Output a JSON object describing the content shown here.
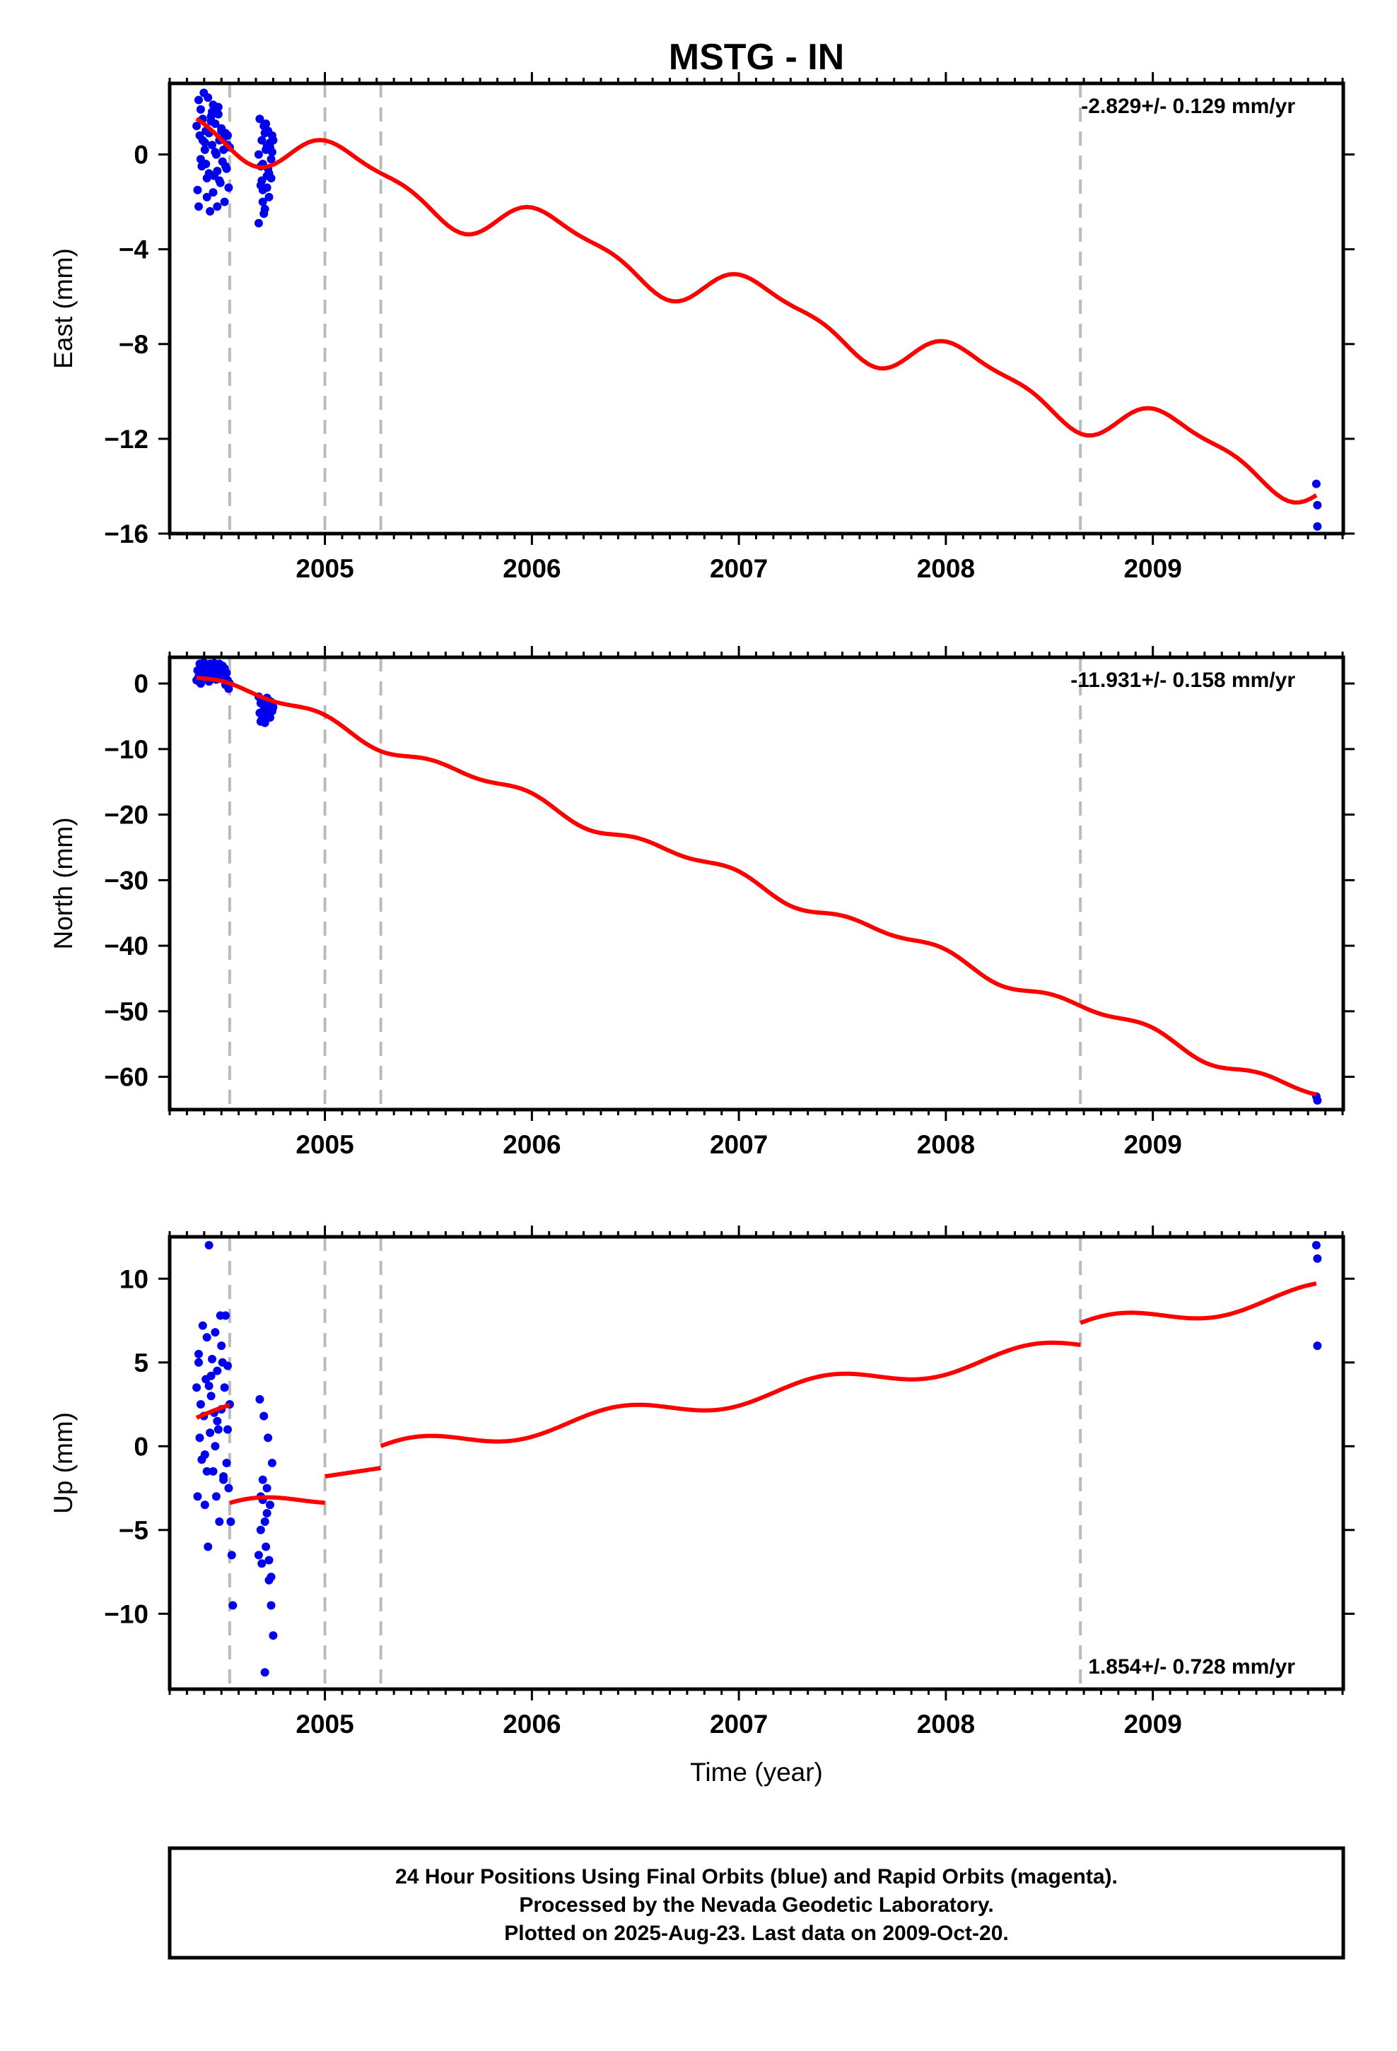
{
  "title": "MSTG - IN",
  "colors": {
    "final_orbits": "#0000ee",
    "model": "#ff0000",
    "event_lines": "#bbbbbb",
    "frame": "#000000"
  },
  "footer": {
    "line1": "24 Hour Positions Using Final Orbits (blue) and Rapid Orbits (magenta).",
    "line2": "Processed by the Nevada Geodetic Laboratory.",
    "line3": "Plotted on 2025-Aug-23. Last data on 2009-Oct-20."
  },
  "chart_data": [
    {
      "type": "scatter",
      "name": "east",
      "ylabel": "East (mm)",
      "xlabel": "",
      "xlim": [
        2004.25,
        2009.92
      ],
      "ylim": [
        -16,
        3
      ],
      "x_ticks": [
        2005,
        2006,
        2007,
        2008,
        2009
      ],
      "y_ticks": [
        0,
        -4,
        -8,
        -12,
        -16
      ],
      "rate_text": "-2.829+/- 0.129 mm/yr",
      "rate_position": "top-right",
      "event_lines": [
        2004.54,
        2005.0,
        2005.27,
        2008.65
      ],
      "model_segments": [
        {
          "start": 2004.38,
          "end": 2009.79,
          "rate": -2.829,
          "offset": -0.05,
          "ref_year": 2004.9,
          "annual_amp": 0.9,
          "annual_phase": 0.25,
          "semiannual_amp": 0.3,
          "semiannual_phase": 1.0
        }
      ],
      "points": {
        "x": [
          2004.38,
          2004.385,
          2004.39,
          2004.395,
          2004.4,
          2004.405,
          2004.41,
          2004.415,
          2004.42,
          2004.425,
          2004.43,
          2004.435,
          2004.44,
          2004.445,
          2004.45,
          2004.455,
          2004.46,
          2004.465,
          2004.47,
          2004.475,
          2004.48,
          2004.485,
          2004.49,
          2004.495,
          2004.5,
          2004.505,
          2004.51,
          2004.515,
          2004.52,
          2004.525,
          2004.53,
          2004.535,
          2004.54,
          2004.39,
          2004.42,
          2004.45,
          2004.48,
          2004.51,
          2004.53,
          2004.4,
          2004.46,
          2004.44,
          2004.5,
          2004.47,
          2004.43,
          2004.52,
          2004.41,
          2004.49,
          2004.455,
          2004.425,
          2004.485,
          2004.68,
          2004.685,
          2004.69,
          2004.695,
          2004.7,
          2004.705,
          2004.71,
          2004.715,
          2004.72,
          2004.725,
          2004.73,
          2004.735,
          2004.74,
          2004.745,
          2004.75,
          2004.69,
          2004.71,
          2004.73,
          2004.7,
          2004.72,
          2004.74,
          2004.68,
          2004.705,
          2004.725,
          2004.745,
          2004.695,
          2004.715,
          2004.735,
          2004.7,
          2004.72,
          2009.79,
          2009.795,
          2009.795
        ],
        "y": [
          1.2,
          -1.5,
          2.3,
          0.8,
          1.9,
          -0.5,
          1.5,
          2.6,
          0.2,
          1.0,
          -1.8,
          2.4,
          0.9,
          -2.4,
          1.6,
          0.4,
          2.1,
          -0.9,
          1.3,
          0.0,
          -2.2,
          1.7,
          0.6,
          -1.2,
          1.1,
          -0.3,
          0.7,
          -2.0,
          0.9,
          -0.6,
          0.4,
          -1.4,
          0.3,
          -2.2,
          0.5,
          1.4,
          -0.7,
          0.2,
          0.8,
          -0.2,
          -1.6,
          -0.8,
          1.0,
          0.1,
          -1.0,
          -0.5,
          0.6,
          -1.1,
          1.8,
          -0.4,
          2.0,
          -2.9,
          1.5,
          -0.5,
          0.6,
          -1.5,
          1.2,
          -2.3,
          0.2,
          -0.9,
          1.0,
          -1.8,
          0.3,
          -0.2,
          0.8,
          0.6,
          -1.3,
          0.9,
          -0.8,
          -2.0,
          0.4,
          -1.0,
          0.0,
          -2.5,
          -0.6,
          0.1,
          -1.1,
          1.3,
          0.5,
          -0.4,
          -1.4,
          -13.9,
          -14.8,
          -15.7
        ]
      }
    },
    {
      "type": "scatter",
      "name": "north",
      "ylabel": "North (mm)",
      "xlabel": "",
      "xlim": [
        2004.25,
        2009.92
      ],
      "ylim": [
        -65,
        4
      ],
      "x_ticks": [
        2005,
        2006,
        2007,
        2008,
        2009
      ],
      "y_ticks": [
        0,
        -10,
        -20,
        -30,
        -40,
        -50,
        -60
      ],
      "rate_text": "-11.931+/- 0.158 mm/yr",
      "rate_position": "top-right",
      "event_lines": [
        2004.54,
        2005.0,
        2005.27,
        2008.65
      ],
      "model_segments": [
        {
          "start": 2004.38,
          "end": 2009.79,
          "rate": -11.931,
          "offset": -4.6,
          "ref_year": 2004.9,
          "annual_amp": 0.8,
          "annual_phase": 2.0,
          "semiannual_amp": 0.6,
          "semiannual_phase": 0.3
        }
      ],
      "points": {
        "x": [
          2004.38,
          2004.385,
          2004.39,
          2004.395,
          2004.4,
          2004.405,
          2004.41,
          2004.415,
          2004.42,
          2004.425,
          2004.43,
          2004.435,
          2004.44,
          2004.445,
          2004.45,
          2004.455,
          2004.46,
          2004.465,
          2004.47,
          2004.475,
          2004.48,
          2004.485,
          2004.49,
          2004.495,
          2004.5,
          2004.505,
          2004.51,
          2004.515,
          2004.52,
          2004.525,
          2004.53,
          2004.535,
          2004.54,
          2004.68,
          2004.685,
          2004.69,
          2004.695,
          2004.7,
          2004.705,
          2004.71,
          2004.715,
          2004.72,
          2004.725,
          2004.73,
          2004.735,
          2004.74,
          2004.745,
          2004.75,
          2004.69,
          2004.71,
          2004.73,
          2004.7,
          2004.72,
          2004.74,
          2009.79,
          2009.795
        ],
        "y": [
          0.5,
          2.0,
          1.0,
          3.0,
          0.0,
          2.5,
          1.5,
          3.2,
          0.8,
          2.2,
          1.2,
          2.8,
          0.3,
          3.0,
          1.8,
          2.4,
          1.0,
          3.1,
          2.0,
          0.6,
          2.6,
          1.4,
          3.0,
          1.9,
          0.8,
          2.7,
          1.1,
          2.3,
          -0.2,
          1.6,
          0.5,
          -0.8,
          0.0,
          -2.0,
          -4.5,
          -3.0,
          -5.5,
          -2.5,
          -4.0,
          -6.0,
          -3.5,
          -2.2,
          -4.8,
          -3.2,
          -5.2,
          -2.8,
          -4.2,
          -3.6,
          -5.8,
          -3.8,
          -2.6,
          -4.4,
          -5.0,
          -3.0,
          -63.0,
          -63.6
        ]
      }
    },
    {
      "type": "scatter",
      "name": "up",
      "ylabel": "Up (mm)",
      "xlabel": "Time (year)",
      "xlim": [
        2004.25,
        2009.92
      ],
      "ylim": [
        -14.5,
        12.5
      ],
      "x_ticks": [
        2005,
        2006,
        2007,
        2008,
        2009
      ],
      "y_ticks": [
        10,
        5,
        0,
        -5,
        -10
      ],
      "rate_text": "1.854+/- 0.728 mm/yr",
      "rate_position": "bottom-right",
      "event_lines": [
        2004.54,
        2005.0,
        2005.27,
        2008.65
      ],
      "model_segments": [
        {
          "start": 2004.38,
          "end": 2004.54,
          "rate": 1.854,
          "offset": 1.7,
          "ref_year": 2004.38,
          "annual_amp": 0.55,
          "annual_phase": 0.0,
          "semiannual_amp": 0.0,
          "semiannual_phase": 0.0
        },
        {
          "start": 2004.54,
          "end": 2005.0,
          "rate": 1.854,
          "offset": -3.85,
          "ref_year": 2004.54,
          "annual_amp": 0.55,
          "annual_phase": 1.0,
          "semiannual_amp": 0.0,
          "semiannual_phase": 0.0
        },
        {
          "start": 2005.0,
          "end": 2005.27,
          "rate": 1.854,
          "offset": -1.8,
          "ref_year": 2005.0,
          "annual_amp": 0.0,
          "annual_phase": 0.0,
          "semiannual_amp": 0.0,
          "semiannual_phase": 0.0
        },
        {
          "start": 2005.27,
          "end": 2008.65,
          "rate": 1.854,
          "offset": -0.3,
          "ref_year": 2005.27,
          "annual_amp": 0.55,
          "annual_phase": 0.6,
          "semiannual_amp": 0.0,
          "semiannual_phase": 0.0
        },
        {
          "start": 2008.65,
          "end": 2009.79,
          "rate": 1.854,
          "offset": 7.05,
          "ref_year": 2008.65,
          "annual_amp": 0.55,
          "annual_phase": 0.6,
          "semiannual_amp": 0.0,
          "semiannual_phase": 0.0
        }
      ],
      "points": {
        "x": [
          2004.38,
          2004.385,
          2004.39,
          2004.395,
          2004.4,
          2004.405,
          2004.41,
          2004.415,
          2004.42,
          2004.425,
          2004.43,
          2004.435,
          2004.44,
          2004.445,
          2004.45,
          2004.455,
          2004.46,
          2004.465,
          2004.47,
          2004.475,
          2004.48,
          2004.485,
          2004.49,
          2004.495,
          2004.5,
          2004.505,
          2004.51,
          2004.515,
          2004.52,
          2004.525,
          2004.53,
          2004.535,
          2004.54,
          2004.39,
          2004.42,
          2004.45,
          2004.48,
          2004.51,
          2004.44,
          2004.47,
          2004.5,
          2004.43,
          2004.53,
          2004.68,
          2004.685,
          2004.69,
          2004.695,
          2004.7,
          2004.705,
          2004.71,
          2004.715,
          2004.72,
          2004.725,
          2004.73,
          2004.735,
          2004.74,
          2004.745,
          2004.75,
          2004.69,
          2004.71,
          2004.73,
          2004.7,
          2004.72,
          2004.74,
          2004.545,
          2004.55,
          2004.555,
          2009.79,
          2009.795,
          2009.795
        ],
        "y": [
          3.5,
          -3.0,
          5.5,
          0.5,
          2.5,
          -0.8,
          7.2,
          1.8,
          -3.5,
          4.0,
          6.5,
          -6.0,
          12.0,
          0.8,
          3.0,
          5.2,
          -1.5,
          2.0,
          6.8,
          -3.0,
          4.5,
          1.0,
          -4.5,
          7.8,
          2.2,
          5.0,
          -2.0,
          3.5,
          7.8,
          -1.0,
          4.8,
          -2.5,
          2.5,
          5.0,
          -0.5,
          4.2,
          1.5,
          -1.8,
          3.6,
          0.0,
          6.0,
          -1.5,
          1.0,
          -6.5,
          2.8,
          -3.0,
          -7.0,
          -2.0,
          1.8,
          -4.5,
          -6.0,
          -2.5,
          0.5,
          -8.0,
          -3.5,
          -9.5,
          -1.0,
          -11.3,
          -5.0,
          -13.5,
          -6.8,
          -3.2,
          -4.0,
          -7.8,
          -4.5,
          -6.5,
          -9.5,
          12.0,
          11.2,
          6.0
        ]
      }
    }
  ]
}
